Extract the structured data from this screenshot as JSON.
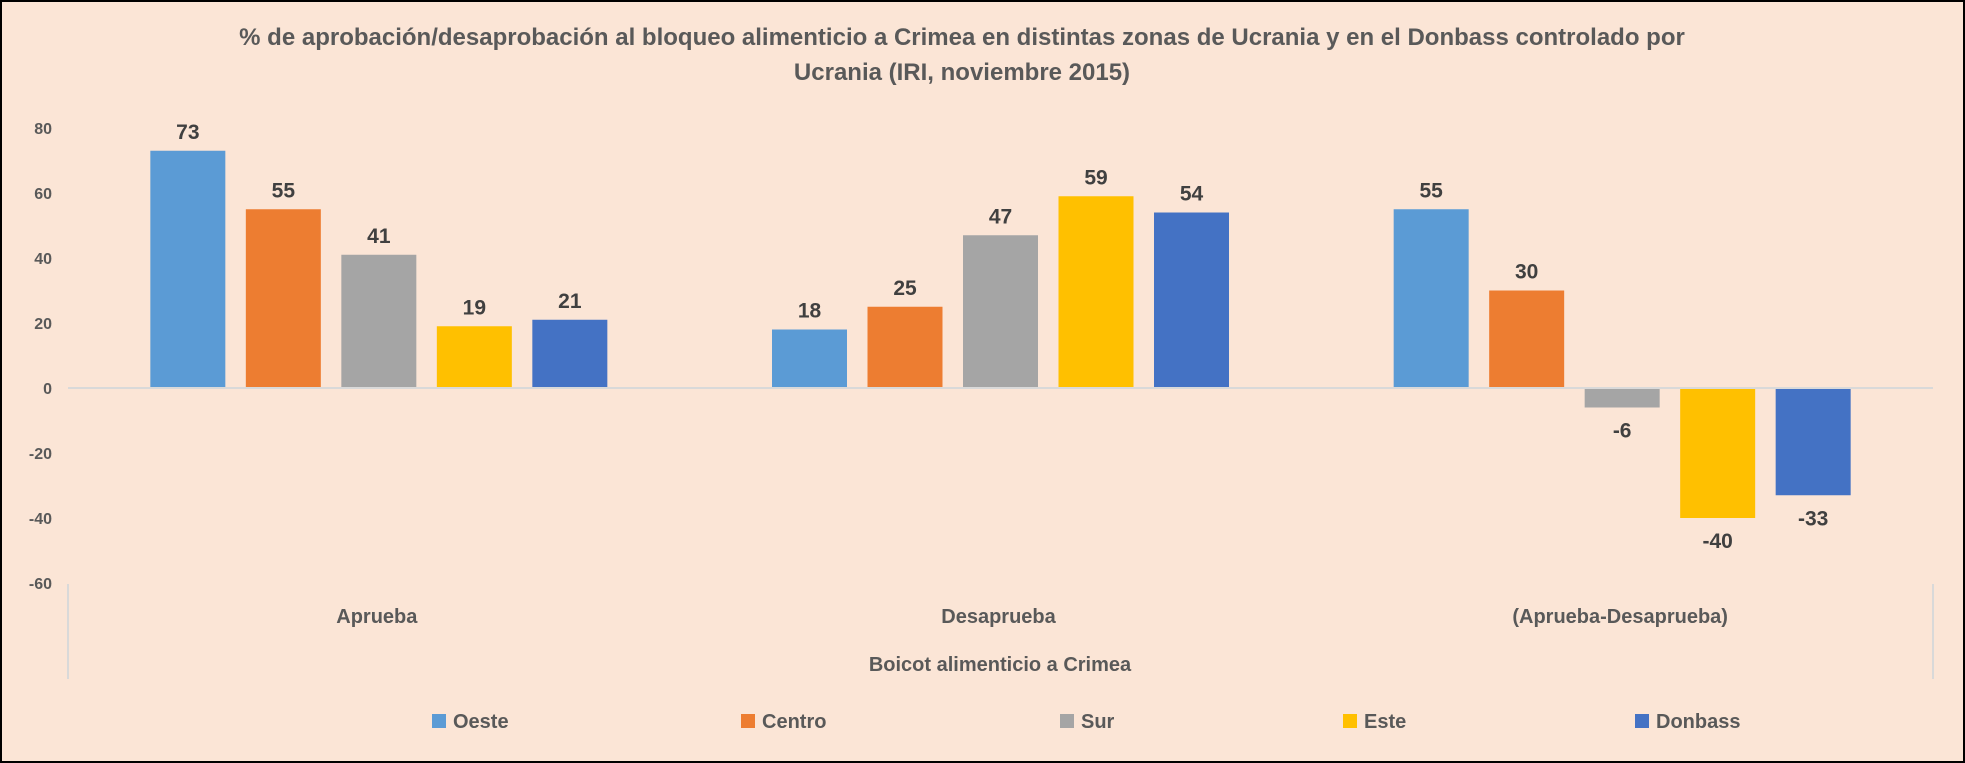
{
  "chart_data": {
    "type": "bar",
    "title": "% de aprobación/desaprobación al bloqueo alimenticio a Crimea en distintas zonas de Ucrania y en el Donbass controlado por Ucrania (IRI, noviembre 2015)",
    "title_lines": [
      "% de aprobación/desaprobación al bloqueo alimenticio a Crimea en distintas zonas de Ucrania y en el Donbass controlado por",
      "Ucrania (IRI, noviembre 2015)"
    ],
    "xlabel": "Boicot alimenticio a Crimea",
    "ylabel": "",
    "categories": [
      "Aprueba",
      "Desaprueba",
      "(Aprueba-Desaprueba)"
    ],
    "ylim": [
      -60,
      80
    ],
    "yticks": [
      80,
      60,
      40,
      20,
      0,
      -20,
      -40,
      -60
    ],
    "grid": false,
    "legend_position": "bottom",
    "series": [
      {
        "name": "Oeste",
        "color": "#5B9BD5",
        "values": [
          73,
          18,
          55
        ]
      },
      {
        "name": "Centro",
        "color": "#ED7D31",
        "values": [
          55,
          25,
          30
        ]
      },
      {
        "name": "Sur",
        "color": "#A5A5A5",
        "values": [
          41,
          47,
          -6
        ]
      },
      {
        "name": "Este",
        "color": "#FFC000",
        "values": [
          19,
          59,
          -40
        ]
      },
      {
        "name": "Donbass",
        "color": "#4472C4",
        "values": [
          21,
          54,
          -33
        ]
      }
    ]
  }
}
